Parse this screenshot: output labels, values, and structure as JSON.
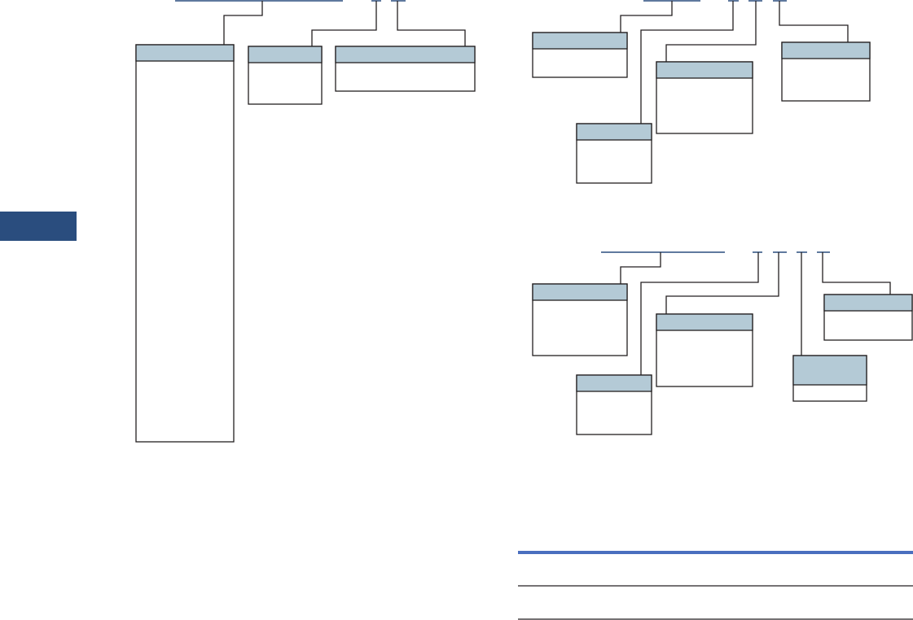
{
  "colors": {
    "header_fill": "#b4cad6",
    "underline_blue": "#2a4d7e",
    "side_tab": "#2a4d7e",
    "table_rule_blue": "#4a6fbf",
    "line": "#231f20"
  }
}
